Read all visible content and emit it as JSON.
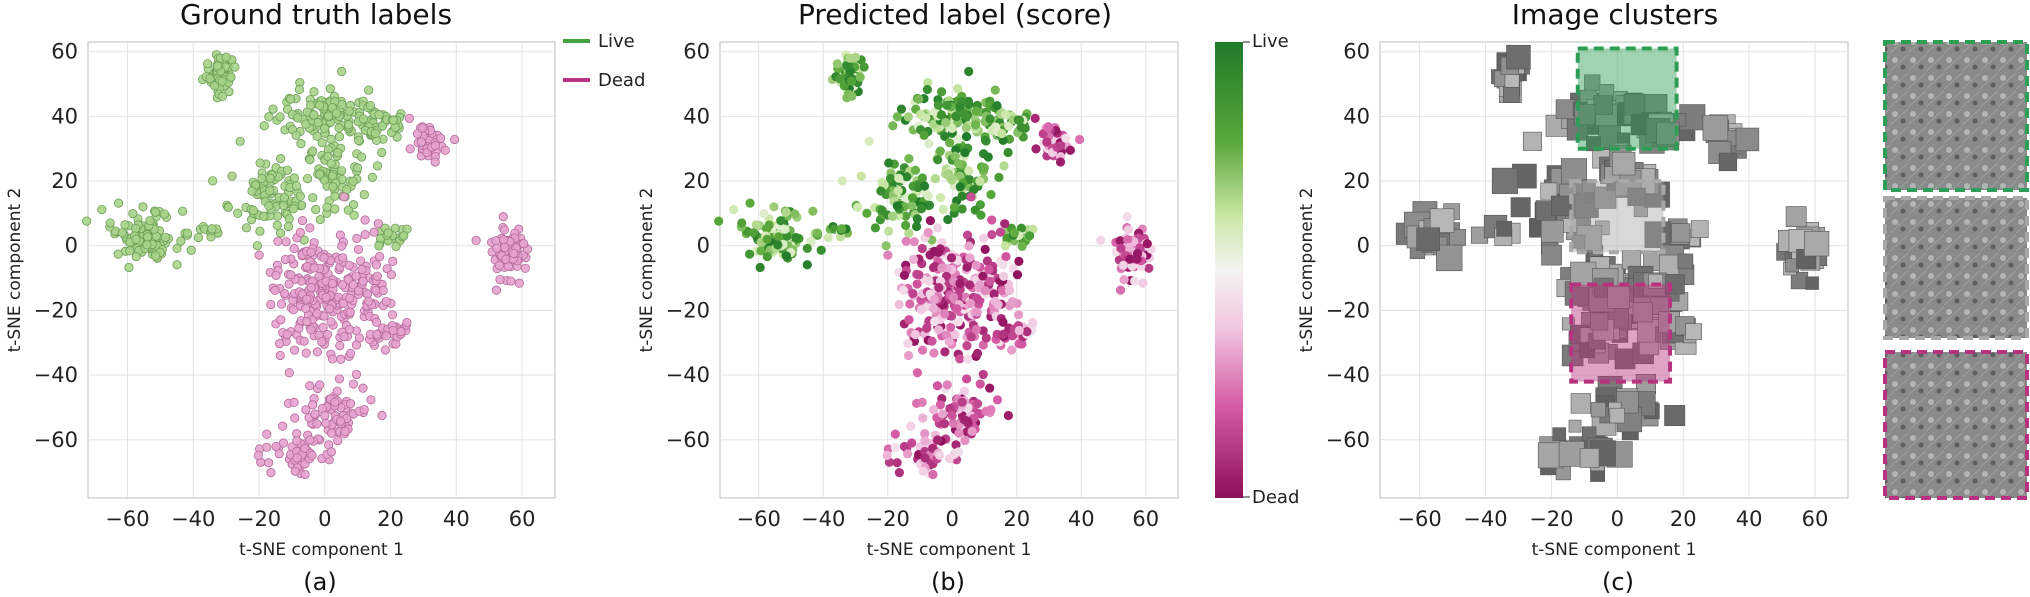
{
  "colors": {
    "live": "#43a340",
    "dead": "#b8337f",
    "live_light": "#a8d38a",
    "dead_light": "#e6a3cf",
    "grid": "#e3e3e3",
    "axis": "#bdbdbd"
  },
  "chart_data": [
    {
      "type": "scatter",
      "panel": "a",
      "title": "Ground truth labels",
      "xlabel": "t-SNE component 1",
      "ylabel": "t-SNE component 2",
      "caption": "(a)",
      "xlim": [
        -72,
        70
      ],
      "ylim": [
        -78,
        63
      ],
      "xticks": [
        -60,
        -40,
        -20,
        0,
        20,
        40,
        60
      ],
      "yticks": [
        60,
        40,
        20,
        0,
        -20,
        -40,
        -60
      ],
      "xtick_labels": [
        "−60",
        "−40",
        "−20",
        "0",
        "20",
        "40",
        "60"
      ],
      "ytick_labels": [
        "60",
        "40",
        "20",
        "0",
        "−20",
        "−40",
        "−60"
      ],
      "legend": [
        {
          "label": "Live",
          "color": "#43a340"
        },
        {
          "label": "Dead",
          "color": "#b8337f"
        }
      ],
      "series": [
        {
          "name": "Live",
          "clusters": [
            {
              "cx": -32,
              "cy": 53,
              "sx": 2.5,
              "sy": 3,
              "n": 55
            },
            {
              "cx": -55,
              "cy": 3,
              "sx": 5,
              "sy": 4,
              "n": 110
            },
            {
              "cx": -2,
              "cy": 40,
              "sx": 7,
              "sy": 5,
              "n": 110
            },
            {
              "cx": 15,
              "cy": 37,
              "sx": 5,
              "sy": 3,
              "n": 50
            },
            {
              "cx": -17,
              "cy": 15,
              "sx": 6,
              "sy": 5,
              "n": 90
            },
            {
              "cx": 2,
              "cy": 22,
              "sx": 6,
              "sy": 6,
              "n": 70
            },
            {
              "cx": 20,
              "cy": 2,
              "sx": 3,
              "sy": 2,
              "n": 20
            },
            {
              "cx": -35,
              "cy": 4,
              "sx": 2,
              "sy": 1.5,
              "n": 12
            }
          ]
        },
        {
          "name": "Dead",
          "clusters": [
            {
              "cx": -2,
              "cy": -15,
              "sx": 8,
              "sy": 10,
              "n": 220
            },
            {
              "cx": 12,
              "cy": -13,
              "sx": 4,
              "sy": 8,
              "n": 60
            },
            {
              "cx": 20,
              "cy": -27,
              "sx": 3,
              "sy": 2,
              "n": 30
            },
            {
              "cx": 32,
              "cy": 32,
              "sx": 3,
              "sy": 3,
              "n": 40
            },
            {
              "cx": 56,
              "cy": -2,
              "sx": 3,
              "sy": 4,
              "n": 70
            },
            {
              "cx": 5,
              "cy": -52,
              "sx": 6,
              "sy": 4,
              "n": 60
            },
            {
              "cx": -7,
              "cy": -63,
              "sx": 5,
              "sy": 3,
              "n": 60
            }
          ]
        }
      ]
    },
    {
      "type": "scatter",
      "panel": "b",
      "title": "Predicted label (score)",
      "xlabel": "t-SNE component 1",
      "ylabel": "t-SNE component 2",
      "caption": "(b)",
      "xlim": [
        -72,
        70
      ],
      "ylim": [
        -78,
        63
      ],
      "xticks": [
        -60,
        -40,
        -20,
        0,
        20,
        40,
        60
      ],
      "yticks": [
        60,
        40,
        20,
        0,
        -20,
        -40,
        -60
      ],
      "xtick_labels": [
        "−60",
        "−40",
        "−20",
        "0",
        "20",
        "40",
        "60"
      ],
      "ytick_labels": [
        "60",
        "40",
        "20",
        "0",
        "−20",
        "−40",
        "−60"
      ],
      "colorbar": {
        "top_label": "Live",
        "bottom_label": "Dead",
        "range": [
          0,
          1
        ]
      },
      "point_score_note": "color encodes predicted score from Dead (0) to Live (1)"
    },
    {
      "type": "scatter",
      "panel": "c",
      "title": "Image clusters",
      "xlabel": "t-SNE component 1",
      "ylabel": "t-SNE component 2",
      "caption": "(c)",
      "xlim": [
        -72,
        70
      ],
      "ylim": [
        -78,
        63
      ],
      "xticks": [
        -60,
        -40,
        -20,
        0,
        20,
        40,
        60
      ],
      "yticks": [
        60,
        40,
        20,
        0,
        -20,
        -40,
        -60
      ],
      "xtick_labels": [
        "−60",
        "−40",
        "−20",
        "0",
        "20",
        "40",
        "60"
      ],
      "ytick_labels": [
        "60",
        "40",
        "20",
        "0",
        "−20",
        "−40",
        "−60"
      ],
      "highlight_boxes": [
        {
          "label": "live-region",
          "x0": -12,
          "x1": 18,
          "y0": 30,
          "y1": 61,
          "color": "#2e9e56"
        },
        {
          "label": "middle-region",
          "x0": -14,
          "x1": 14,
          "y0": -2,
          "y1": 20,
          "color": "#a8a8a8"
        },
        {
          "label": "dead-region",
          "x0": -14,
          "x1": 16,
          "y0": -42,
          "y1": -12,
          "color": "#b8337f"
        }
      ]
    }
  ]
}
